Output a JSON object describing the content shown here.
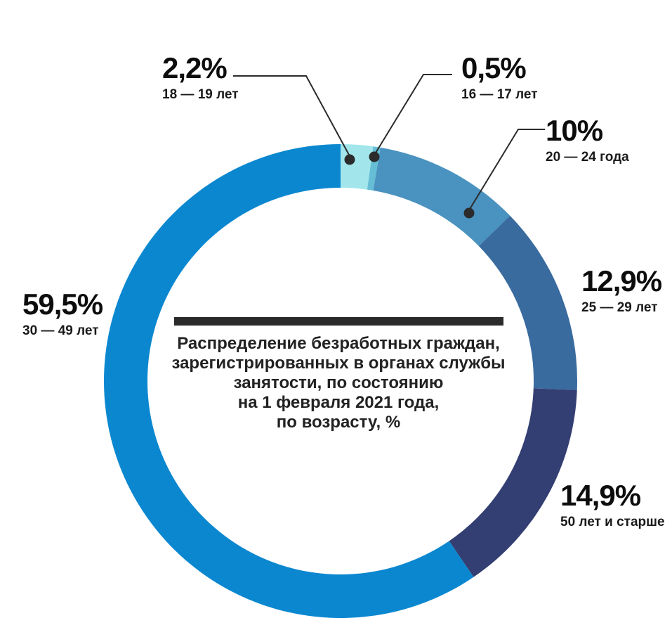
{
  "chart_data": {
    "type": "donut",
    "title": "Распределение безработных граждан, зарегистрированных в органах службы занятости, по состоянию на 1 февраля 2021 года, по возрасту, %",
    "unit": "%",
    "direction": "clockwise",
    "start_angle_deg": 0,
    "total": 100,
    "legend_position": "around",
    "segments": [
      {
        "label": "18 — 19 лет",
        "value": 2.2,
        "value_label": "2,2%",
        "color": "#A2E6EC"
      },
      {
        "label": "16 — 17 лет",
        "value": 0.5,
        "value_label": "0,5%",
        "color": "#65BED5"
      },
      {
        "label": "20 — 24 года",
        "value": 10,
        "value_label": "10%",
        "color": "#4A92BF"
      },
      {
        "label": "25 — 29 лет",
        "value": 12.9,
        "value_label": "12,9%",
        "color": "#396B9F"
      },
      {
        "label": "50 лет и старше",
        "value": 14.9,
        "value_label": "14,9%",
        "color": "#333E72"
      },
      {
        "label": "30 — 49 лет",
        "value": 59.5,
        "value_label": "59,5%",
        "color": "#0B87D0"
      }
    ],
    "center_lines": [
      "Распределение безработных граждан,",
      "зарегистрированных в органах службы",
      "занятости, по состоянию",
      "на 1 февраля 2021 года,",
      "по возрасту, %"
    ],
    "colors": {
      "callout": "#2B2B2B",
      "divider": "#2B2B2B",
      "number_text": "#0D0D0D",
      "range_text": "#1A1A1A",
      "background": "#FFFFFF"
    }
  }
}
